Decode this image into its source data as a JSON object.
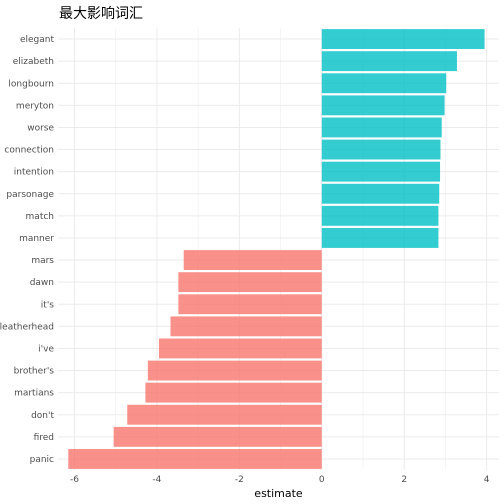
{
  "chart_data": {
    "type": "bar",
    "orientation": "horizontal",
    "title": "最大影响词汇",
    "xlabel": "estimate",
    "ylabel": "",
    "xlim": [
      -6.4,
      4.3
    ],
    "x_ticks": [
      -6,
      -4,
      -2,
      0,
      2,
      4
    ],
    "grid": true,
    "legend": "none",
    "categories": [
      "elegant",
      "elizabeth",
      "longbourn",
      "meryton",
      "worse",
      "connection",
      "intention",
      "parsonage",
      "match",
      "manner",
      "mars",
      "dawn",
      "it's",
      "leatherhead",
      "i've",
      "brother's",
      "martians",
      "don't",
      "fired",
      "panic"
    ],
    "values": [
      3.95,
      3.28,
      3.02,
      2.98,
      2.91,
      2.88,
      2.87,
      2.85,
      2.83,
      2.83,
      -3.35,
      -3.48,
      -3.48,
      -3.67,
      -3.95,
      -4.22,
      -4.28,
      -4.72,
      -5.05,
      -6.15
    ],
    "colors": {
      "positive": "#00BFC4",
      "negative": "#F8766D",
      "grid": "#ebebeb"
    }
  }
}
